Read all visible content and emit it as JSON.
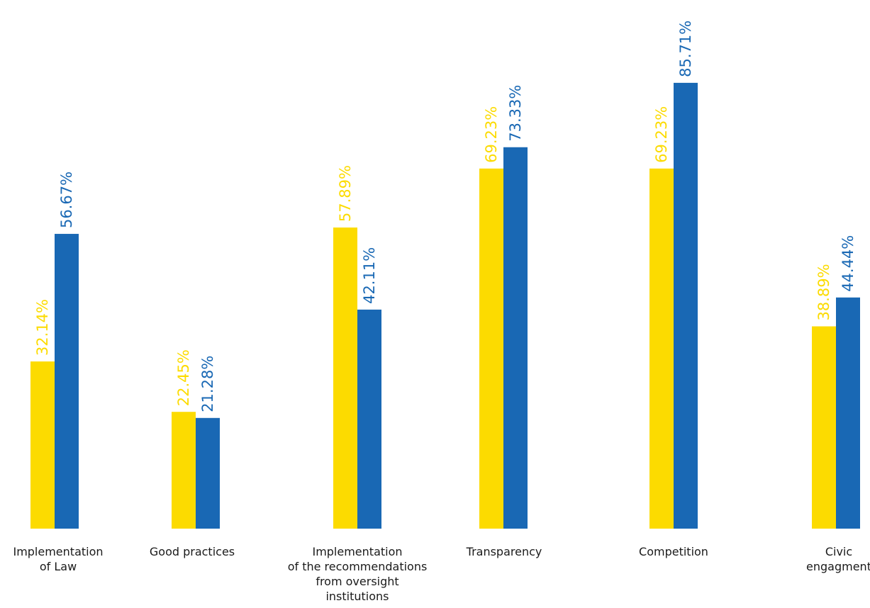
{
  "chart_data": {
    "type": "bar",
    "categories": [
      [
        "Implementation",
        "of Law"
      ],
      [
        "Good practices"
      ],
      [
        "Implementation",
        "of the recommendations",
        "from oversight",
        "institutions"
      ],
      [
        "Transparency"
      ],
      [
        "Competition"
      ],
      [
        "Civic",
        "engagment"
      ]
    ],
    "series": [
      {
        "color": "#FCDB00",
        "values": [
          32.14,
          22.45,
          57.89,
          69.23,
          69.23,
          38.89
        ],
        "labels": [
          "32.14%",
          "22.45%",
          "57.89%",
          "69.23%",
          "69.23%",
          "38.89%"
        ]
      },
      {
        "color": "#1968B4",
        "values": [
          56.67,
          21.28,
          42.11,
          73.33,
          85.71,
          44.44
        ],
        "labels": [
          "56.67%",
          "21.28%",
          "42.11%",
          "73.33%",
          "85.71%",
          "44.44%"
        ]
      }
    ],
    "ylim": [
      0,
      100
    ],
    "grid": false,
    "legend": "none",
    "title": "",
    "xlabel": "",
    "ylabel": ""
  }
}
